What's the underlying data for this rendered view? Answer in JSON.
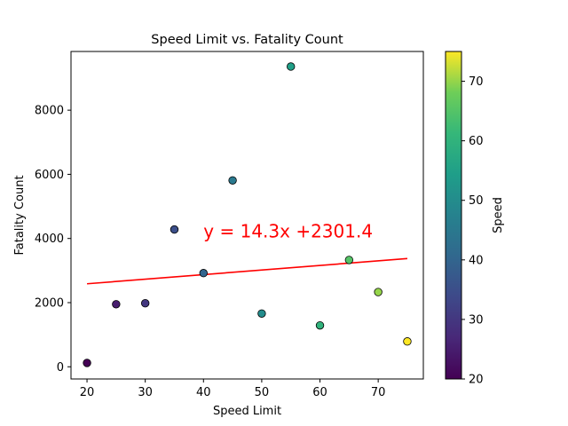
{
  "chart_data": {
    "type": "scatter",
    "title": "Speed Limit vs. Fatality Count",
    "xlabel": "Speed Limit",
    "ylabel": "Fatality Count",
    "xlim": [
      17.25,
      77.75
    ],
    "ylim": [
      -380,
      9830
    ],
    "xticks": [
      20,
      30,
      40,
      50,
      60,
      70
    ],
    "yticks": [
      0,
      2000,
      4000,
      6000,
      8000
    ],
    "points": [
      {
        "x": 20,
        "y": 120
      },
      {
        "x": 25,
        "y": 1950
      },
      {
        "x": 30,
        "y": 1980
      },
      {
        "x": 35,
        "y": 4280
      },
      {
        "x": 40,
        "y": 2920
      },
      {
        "x": 45,
        "y": 5810
      },
      {
        "x": 50,
        "y": 1660
      },
      {
        "x": 55,
        "y": 9360
      },
      {
        "x": 60,
        "y": 1290
      },
      {
        "x": 65,
        "y": 3330
      },
      {
        "x": 70,
        "y": 2330
      },
      {
        "x": 75,
        "y": 790
      }
    ],
    "regression": {
      "slope": 14.3,
      "intercept": 2301.4,
      "color": "#ff0000"
    },
    "annotation": {
      "text": "y = 14.3x +2301.4",
      "color": "#ff0000",
      "x": 40,
      "y": 4040
    },
    "colorbar": {
      "label": "Speed",
      "range": [
        20,
        75
      ],
      "ticks": [
        20,
        30,
        40,
        50,
        60,
        70
      ],
      "colormap": "viridis"
    },
    "grid": false
  }
}
